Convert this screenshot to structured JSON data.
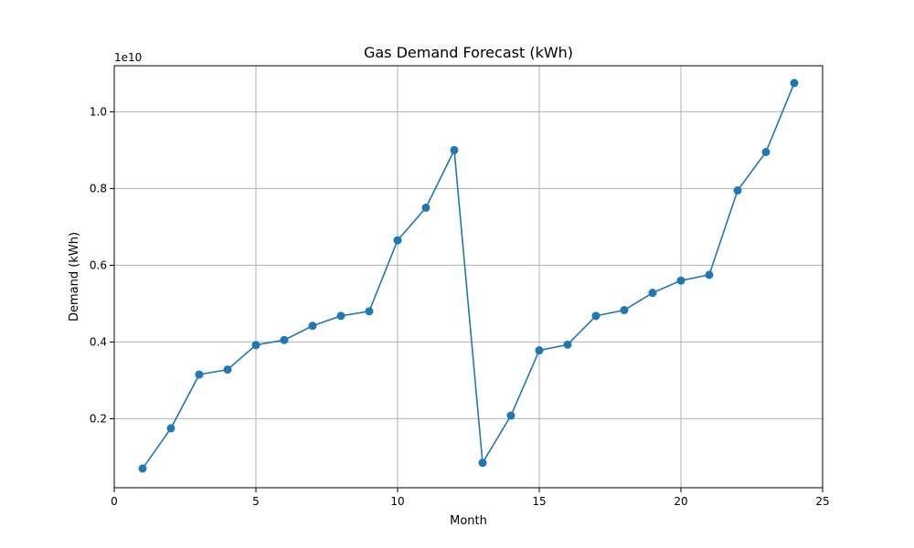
{
  "chart_data": {
    "type": "line",
    "title": "Gas Demand Forecast (kWh)",
    "xlabel": "Month",
    "ylabel": "Demand (kWh)",
    "y_offset_label": "1e10",
    "xlim": [
      0,
      25
    ],
    "ylim": [
      0.2,
      11.2
    ],
    "y_unit_note": "y values below are in units of 1e9 kWh (axis shows 1e10 offset)",
    "x_ticks": [
      0,
      5,
      10,
      15,
      20,
      25
    ],
    "x_tick_labels": [
      "0",
      "5",
      "10",
      "15",
      "20",
      "25"
    ],
    "y_ticks": [
      2,
      4,
      6,
      8,
      10
    ],
    "y_tick_labels": [
      "0.2",
      "0.4",
      "0.6",
      "0.8",
      "1.0"
    ],
    "grid": true,
    "series": [
      {
        "color": "#1f77b4",
        "marker": "circle",
        "x": [
          1,
          2,
          3,
          4,
          5,
          6,
          7,
          8,
          9,
          10,
          11,
          12,
          13,
          14,
          15,
          16,
          17,
          18,
          19,
          20,
          21,
          22,
          23,
          24
        ],
        "y": [
          0.7,
          1.75,
          3.15,
          3.28,
          3.92,
          4.05,
          4.42,
          4.68,
          4.8,
          6.65,
          7.5,
          9.0,
          0.85,
          2.08,
          3.78,
          3.93,
          4.68,
          4.83,
          5.28,
          5.6,
          5.75,
          7.95,
          8.95,
          10.75
        ]
      }
    ]
  }
}
